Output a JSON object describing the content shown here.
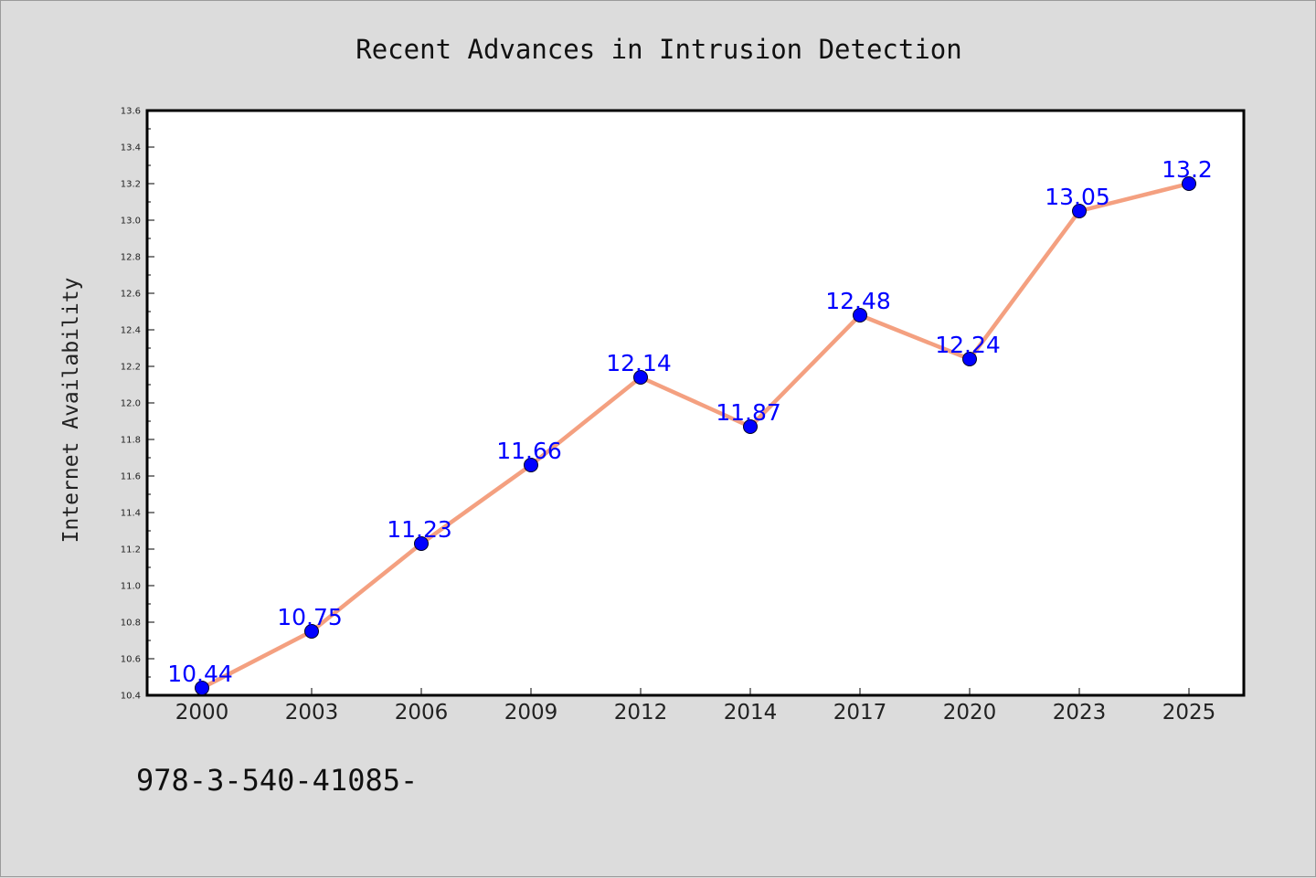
{
  "chart_data": {
    "type": "line",
    "title": "Recent Advances in Intrusion Detection",
    "xlabel": "",
    "ylabel": "Internet Availability",
    "categories": [
      "2000",
      "2003",
      "2006",
      "2009",
      "2012",
      "2014",
      "2017",
      "2020",
      "2023",
      "2025"
    ],
    "series": [
      {
        "values": [
          10.44,
          10.75,
          11.23,
          11.66,
          12.14,
          11.87,
          12.48,
          12.24,
          13.05,
          13.2
        ],
        "line_color": "#f4a080",
        "marker_color": "#0000ff"
      }
    ],
    "data_labels": [
      "10.44",
      "10.75",
      "11.23",
      "11.66",
      "12.14",
      "11.87",
      "12.48",
      "12.24",
      "13.05",
      "13.2"
    ],
    "data_label_color": "#0000ff",
    "ylim": [
      10.4,
      13.6
    ],
    "yticks": [
      "10.4",
      "10.6",
      "10.8",
      "11.0",
      "11.2",
      "11.4",
      "11.6",
      "11.8",
      "12.0",
      "12.2",
      "12.4",
      "12.6",
      "12.8",
      "13.0",
      "13.2",
      "13.4",
      "13.6"
    ],
    "grid": false,
    "legend": "none"
  },
  "footer": {
    "text": "978-3-540-41085-"
  }
}
